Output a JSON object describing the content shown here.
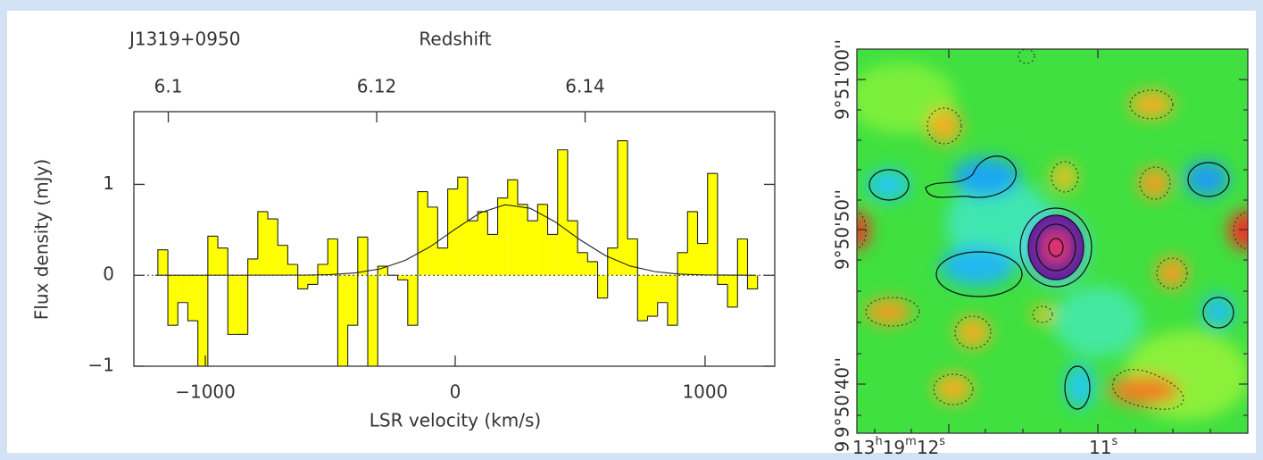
{
  "chart_data": {
    "type": "histogram",
    "title": "J1319+0950",
    "x2_label": "Redshift",
    "xlabel": "LSR velocity (km/s)",
    "ylabel": "Flux density (mJy)",
    "color": "#ffff00",
    "bins": [
      -1190,
      -1150,
      -1110,
      -1070,
      -1030,
      -990,
      -950,
      -910,
      -870,
      -830,
      -790,
      -750,
      -710,
      -670,
      -630,
      -590,
      -550,
      -510,
      -470,
      -430,
      -390,
      -350,
      -310,
      -270,
      -230,
      -190,
      -150,
      -110,
      -70,
      -30,
      10,
      50,
      90,
      130,
      170,
      210,
      250,
      290,
      330,
      370,
      410,
      450,
      490,
      530,
      570,
      610,
      650,
      690,
      730,
      770,
      810,
      850,
      890,
      930,
      970,
      1010,
      1050,
      1090,
      1130,
      1170,
      1210
    ],
    "values": [
      0.28,
      -0.55,
      -0.3,
      -0.5,
      -1.0,
      0.43,
      0.3,
      -0.65,
      -0.65,
      0.18,
      0.7,
      0.62,
      0.33,
      0.12,
      -0.15,
      -0.1,
      0.12,
      0.4,
      -1.0,
      -0.55,
      0.42,
      -1.0,
      0.1,
      0.0,
      -0.05,
      -0.55,
      0.92,
      0.75,
      0.3,
      0.95,
      1.08,
      0.6,
      0.7,
      0.45,
      0.85,
      1.05,
      0.78,
      0.6,
      0.78,
      0.45,
      1.38,
      0.6,
      0.25,
      0.15,
      -0.25,
      0.3,
      1.48,
      0.4,
      -0.5,
      -0.45,
      -0.3,
      -0.55,
      0.25,
      0.7,
      0.35,
      1.12,
      -0.1,
      -0.35,
      0.4,
      -0.15
    ],
    "fit": {
      "x": [
        -1200,
        -600,
        -500,
        -400,
        -300,
        -200,
        -100,
        0,
        100,
        200,
        300,
        400,
        500,
        600,
        700,
        800,
        900,
        1000,
        1200
      ],
      "values": [
        0,
        0.002,
        0.008,
        0.026,
        0.071,
        0.164,
        0.315,
        0.508,
        0.687,
        0.776,
        0.737,
        0.588,
        0.39,
        0.218,
        0.102,
        0.04,
        0.013,
        0.004,
        0
      ]
    },
    "xlim": [
      -1286,
      1279
    ],
    "xticks": [
      {
        "value": -1000,
        "label": "−1000"
      },
      0,
      1000
    ],
    "ylim": [
      -1,
      1.8
    ],
    "yticks": [
      {
        "value": -1,
        "label": "−1"
      },
      0,
      1
    ],
    "x2lim": [
      6.0967,
      6.1582
    ],
    "x2ticks": [
      6.1,
      6.12,
      6.14
    ]
  },
  "map": {
    "ylabels": [
      "9°51'00''",
      "9°50'50''",
      "9°50'40''"
    ],
    "edge_label": "9",
    "xlabels": [
      [
        "13",
        "h",
        "19",
        "m",
        "12",
        "s"
      ],
      [
        "11",
        "s"
      ]
    ]
  }
}
